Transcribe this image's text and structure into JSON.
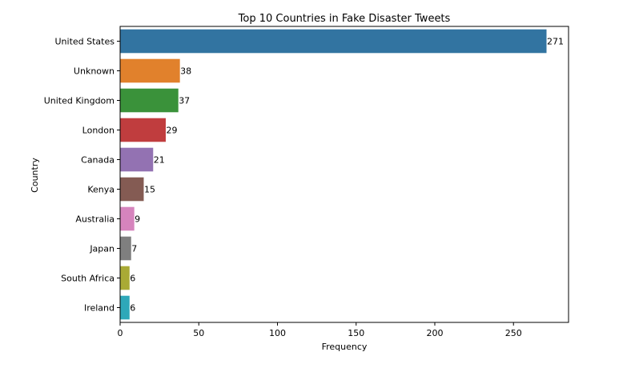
{
  "chart_data": {
    "type": "bar",
    "orientation": "horizontal",
    "title": "Top 10 Countries in Fake Disaster Tweets",
    "xlabel": "Frequency",
    "ylabel": "Country",
    "xlim": [
      0,
      285
    ],
    "xticks": [
      0,
      50,
      100,
      150,
      200,
      250
    ],
    "grid": false,
    "categories": [
      "United States",
      "Unknown",
      "United Kingdom",
      "London",
      "Canada",
      "Kenya",
      "Australia",
      "Japan",
      "South Africa",
      "Ireland"
    ],
    "values": [
      271,
      38,
      37,
      29,
      21,
      15,
      9,
      7,
      6,
      6
    ],
    "colors": [
      "#3274a1",
      "#e1812c",
      "#3a923a",
      "#c03d3e",
      "#9372b2",
      "#845b53",
      "#d684bd",
      "#7f7f7f",
      "#a9aa35",
      "#2ea8b9"
    ]
  }
}
